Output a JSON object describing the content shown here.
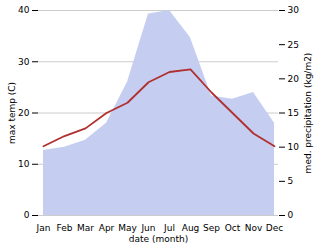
{
  "chart_data": {
    "type": "line",
    "categories": [
      "Jan",
      "Feb",
      "Mar",
      "Apr",
      "May",
      "Jun",
      "Jul",
      "Aug",
      "Sep",
      "Oct",
      "Nov",
      "Dec"
    ],
    "series": [
      {
        "type": "area",
        "axis": "y2",
        "color": "#c5cef0",
        "values": [
          9.5,
          10.0,
          11.0,
          13.5,
          19.5,
          29.5,
          30.0,
          26.0,
          17.5,
          17.0,
          18.0,
          13.5
        ]
      },
      {
        "type": "line",
        "color": "#b03030",
        "values": [
          13.5,
          15.5,
          17.0,
          20.0,
          22.0,
          26.0,
          28.0,
          28.5,
          24.0,
          20.0,
          16.0,
          13.5
        ]
      }
    ],
    "xlabel": "date (month)",
    "ylabel": "max temp (C)",
    "y2label": "med. precipitation (kg/m2)",
    "ylim": [
      0,
      40
    ],
    "yticks": [
      0,
      10,
      20,
      30,
      40
    ],
    "y2lim": [
      0,
      30
    ],
    "y2ticks": [
      0,
      5,
      10,
      15,
      20,
      25,
      30
    ],
    "grid": true
  }
}
